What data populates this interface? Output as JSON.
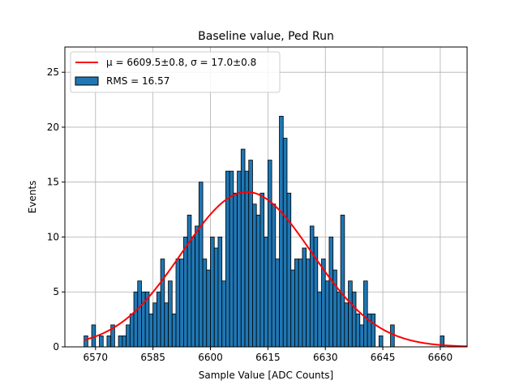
{
  "chart_data": {
    "type": "histogram",
    "title": "Baseline value, Ped Run",
    "xlabel": "Sample Value [ADC Counts]",
    "ylabel": "Events",
    "xlim": [
      6562,
      6667
    ],
    "ylim": [
      0,
      27.3
    ],
    "grid": true,
    "legend_position": "top-left",
    "xticks": [
      6570,
      6585,
      6600,
      6615,
      6630,
      6645,
      6660
    ],
    "yticks": [
      0,
      5,
      10,
      15,
      20,
      25
    ],
    "bin_start": 6567,
    "bin_width": 1,
    "counts": [
      1,
      0,
      2,
      0,
      1,
      0,
      1,
      2,
      0,
      1,
      1,
      2,
      3,
      5,
      6,
      5,
      5,
      3,
      4,
      5,
      8,
      4,
      6,
      3,
      8,
      8,
      10,
      12,
      10,
      11,
      15,
      8,
      7,
      10,
      9,
      10,
      6,
      16,
      16,
      14,
      16,
      18,
      16,
      17,
      13,
      12,
      14,
      10,
      17,
      13,
      8,
      21,
      19,
      14,
      7,
      8,
      8,
      9,
      8,
      11,
      10,
      5,
      8,
      6,
      10,
      7,
      5,
      12,
      4,
      6,
      5,
      3,
      2,
      6,
      3,
      3,
      0,
      1,
      0,
      0,
      2,
      0,
      0,
      0,
      0,
      0,
      0,
      0,
      0,
      0,
      0,
      0,
      0,
      1
    ],
    "series": [
      {
        "name": "RMS = 16.57",
        "kind": "histogram",
        "color": "#1f77b4",
        "edge_color": "#000000"
      },
      {
        "name": "μ = 6609.5±0.8, σ = 17.0±0.8",
        "kind": "gaussian-fit",
        "color": "#ff0000",
        "amplitude": 14.1,
        "mu": 6609.5,
        "sigma": 17.0,
        "x_range": [
          6567,
          6667
        ]
      }
    ]
  },
  "legend": {
    "fit_label": "μ = 6609.5±0.8, σ = 17.0±0.8",
    "hist_label": "RMS = 16.57"
  }
}
